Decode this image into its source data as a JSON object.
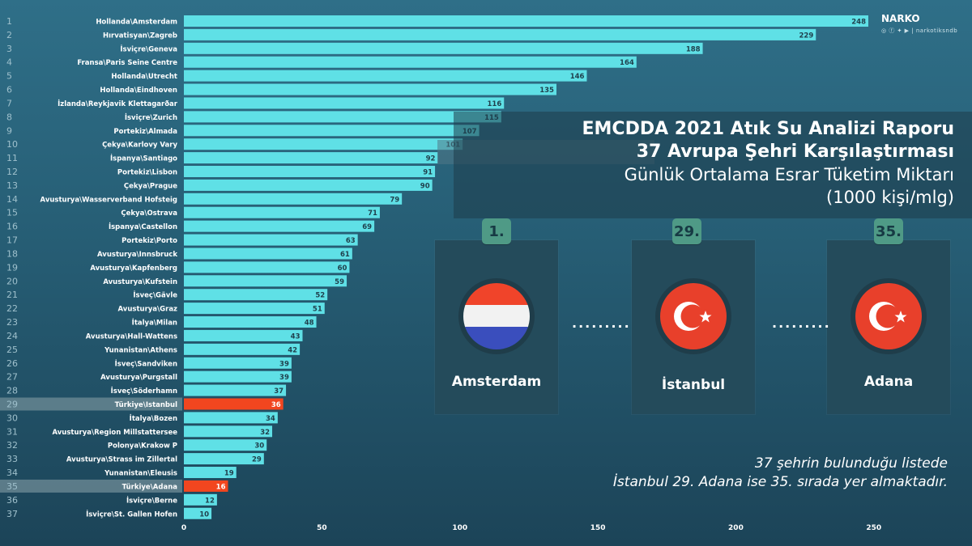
{
  "chart_data": {
    "type": "bar",
    "orientation": "horizontal",
    "categories": [
      "Hollanda\\Amsterdam",
      "Hırvatisyan\\Zagreb",
      "İsviçre\\Geneva",
      "Fransa\\Paris Seine Centre",
      "Hollanda\\Utrecht",
      "Hollanda\\Eindhoven",
      "İzlanda\\Reykjavik Klettagarðar",
      "İsviçre\\Zurich",
      "Portekiz\\Almada",
      "Çekya\\Karlovy Vary",
      "İspanya\\Santiago",
      "Portekiz\\Lisbon",
      "Çekya\\Prague",
      "Avusturya\\Wasserverband Hofsteig",
      "Çekya\\Ostrava",
      "İspanya\\Castellon",
      "Portekiz\\Porto",
      "Avusturya\\Innsbruck",
      "Avusturya\\Kapfenberg",
      "Avusturya\\Kufstein",
      "İsveç\\Gävle",
      "Avusturya\\Graz",
      "İtalya\\Milan",
      "Avusturya\\Hall-Wattens",
      "Yunanistan\\Athens",
      "İsveç\\Sandviken",
      "Avusturya\\Purgstall",
      "İsveç\\Söderhamn",
      "Türkiye\\Istanbul",
      "İtalya\\Bozen",
      "Avusturya\\Region Millstattersee",
      "Polonya\\Krakow P",
      "Avusturya\\Strass im Zillertal",
      "Yunanistan\\Eleusis",
      "Türkiye\\Adana",
      "İsviçre\\Berne",
      "İsviçre\\St. Gallen Hofen"
    ],
    "values": [
      248,
      229,
      188,
      164,
      146,
      135,
      116,
      115,
      107,
      101,
      92,
      91,
      90,
      79,
      71,
      69,
      63,
      61,
      60,
      59,
      52,
      51,
      48,
      43,
      42,
      39,
      39,
      37,
      36,
      34,
      32,
      30,
      29,
      19,
      16,
      12,
      10
    ],
    "ranks": [
      "1",
      "2",
      "3",
      "4",
      "5",
      "6",
      "7",
      "8",
      "9",
      "10",
      "11",
      "12",
      "13",
      "14",
      "15",
      "16",
      "17",
      "18",
      "19",
      "20",
      "21",
      "22",
      "23",
      "24",
      "25",
      "26",
      "27",
      "28",
      "29",
      "30",
      "31",
      "32",
      "33",
      "34",
      "35",
      "36",
      "37"
    ],
    "highlight_indices": [
      28,
      34
    ],
    "xticks": [
      0,
      50,
      100,
      150,
      200,
      250
    ],
    "xlim": [
      0,
      270
    ],
    "colors": {
      "bar": "#5fe0e6",
      "highlight": "#f2461f",
      "rank_strip": "#6a8894"
    }
  },
  "title": {
    "line1": "EMCDDA 2021 Atık Su Analizi Raporu",
    "line2": "37 Avrupa Şehri Karşılaştırması",
    "line3": "Günlük Ortalama Esrar Tüketim Miktarı",
    "line4": "(1000 kişi/mlg)"
  },
  "cards": [
    {
      "rank": "1.",
      "city": "Amsterdam",
      "flag": "netherlands-flag-icon"
    },
    {
      "rank": "29.",
      "city": "İstanbul",
      "flag": "turkey-flag-icon"
    },
    {
      "rank": "35.",
      "city": "Adana",
      "flag": "turkey-flag-icon"
    }
  ],
  "dots": ".........",
  "note": {
    "line1": "37 şehrin bulunduğu listede",
    "line2": "İstanbul 29.  Adana ise 35. sırada yer almaktadır."
  },
  "brand": {
    "logo": "NARKO",
    "handle": "narkotiksndb"
  }
}
